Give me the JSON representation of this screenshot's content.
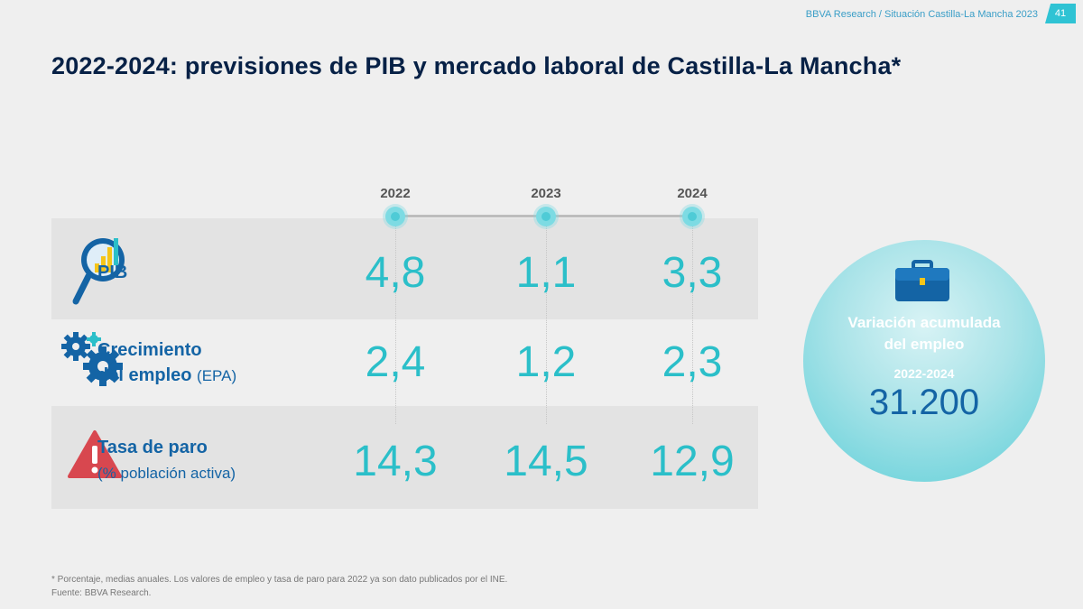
{
  "header": {
    "source": "BBVA Research / Situación Castilla-La Mancha 2023",
    "page_number": "41"
  },
  "title": "2022-2024: previsiones de PIB y mercado laboral de Castilla-La Mancha*",
  "years": [
    "2022",
    "2023",
    "2024"
  ],
  "rows": [
    {
      "label": "PIB",
      "label_suffix": "",
      "label_line2": "",
      "values": [
        "4,8",
        "1,1",
        "3,3"
      ],
      "icon": "magnifier-chart-icon"
    },
    {
      "label": "Crecimiento",
      "label_suffix": "",
      "label_line2": "del empleo",
      "label_line2_suffix": "(EPA)",
      "values": [
        "2,4",
        "1,2",
        "2,3"
      ],
      "icon": "gears-icon"
    },
    {
      "label": "Tasa de paro",
      "label_suffix": "",
      "label_line2": "(% población activa)",
      "values": [
        "14,3",
        "14,5",
        "12,9"
      ],
      "icon": "warning-icon"
    }
  ],
  "highlight": {
    "label_line1": "Variación acumulada",
    "label_line2": "del empleo",
    "period": "2022-2024",
    "value": "31.200",
    "icon": "briefcase-icon"
  },
  "footnote": {
    "note": "* Porcentaje, medias anuales. Los valores de empleo y tasa de paro para 2022 ya son dato publicados por el INE.",
    "source": "Fuente: BBVA Research."
  },
  "colors": {
    "title": "#072146",
    "accent": "#2bbfc9",
    "label": "#1464a5"
  }
}
